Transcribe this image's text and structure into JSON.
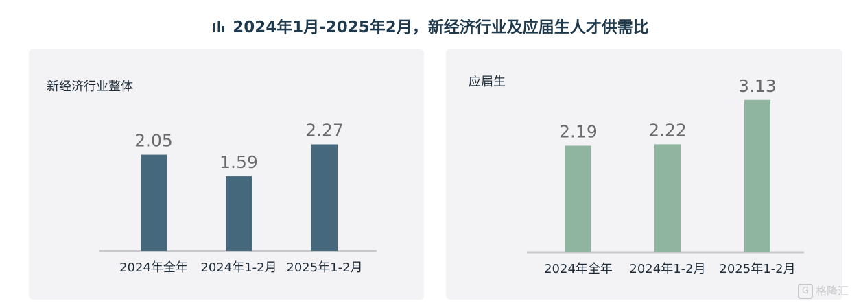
{
  "header": {
    "title": "2024年1月-2025年2月，新经济行业及应届生人才供需比",
    "icon": "bar-chart-icon"
  },
  "colors": {
    "left_bar": "#46687d",
    "right_bar": "#8fb5a1",
    "axis": "#c8c8cc",
    "panel_bg": "#f3f3f5"
  },
  "chart_data": [
    {
      "type": "bar",
      "title": "新经济行业整体",
      "categories": [
        "2024年全年",
        "2024年1-2月",
        "2025年1-2月"
      ],
      "values": [
        2.05,
        1.59,
        2.27
      ],
      "ylim": [
        0,
        2.8
      ]
    },
    {
      "type": "bar",
      "title": "应届生",
      "categories": [
        "2024年全年",
        "2024年1-2月",
        "2025年1-2月"
      ],
      "values": [
        2.19,
        2.22,
        3.13
      ],
      "ylim": [
        0,
        3.6
      ]
    }
  ],
  "watermark": "格隆汇"
}
